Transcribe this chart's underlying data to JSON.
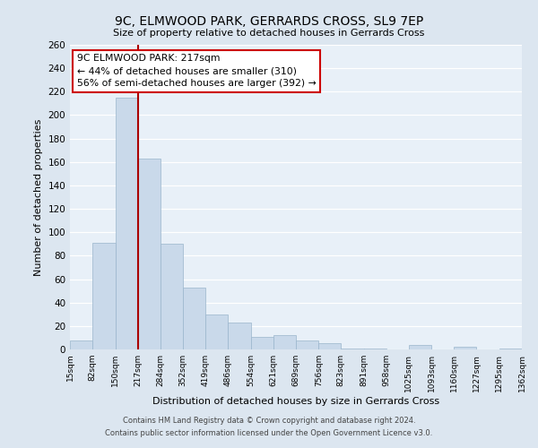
{
  "title": "9C, ELMWOOD PARK, GERRARDS CROSS, SL9 7EP",
  "subtitle": "Size of property relative to detached houses in Gerrards Cross",
  "xlabel": "Distribution of detached houses by size in Gerrards Cross",
  "ylabel": "Number of detached properties",
  "bin_edges": [
    15,
    82,
    150,
    217,
    284,
    352,
    419,
    486,
    554,
    621,
    689,
    756,
    823,
    891,
    958,
    1025,
    1093,
    1160,
    1227,
    1295,
    1362
  ],
  "bin_heights": [
    8,
    91,
    215,
    163,
    90,
    53,
    30,
    23,
    11,
    12,
    8,
    5,
    1,
    1,
    0,
    4,
    0,
    2,
    0,
    1
  ],
  "bar_color": "#c9d9ea",
  "bar_edgecolor": "#9ab5cc",
  "vline_x": 217,
  "vline_color": "#aa0000",
  "annotation_text": "9C ELMWOOD PARK: 217sqm\n← 44% of detached houses are smaller (310)\n56% of semi-detached houses are larger (392) →",
  "annotation_box_edgecolor": "#cc0000",
  "annotation_box_facecolor": "#ffffff",
  "ylim": [
    0,
    260
  ],
  "yticks": [
    0,
    20,
    40,
    60,
    80,
    100,
    120,
    140,
    160,
    180,
    200,
    220,
    240,
    260
  ],
  "tick_labels": [
    "15sqm",
    "82sqm",
    "150sqm",
    "217sqm",
    "284sqm",
    "352sqm",
    "419sqm",
    "486sqm",
    "554sqm",
    "621sqm",
    "689sqm",
    "756sqm",
    "823sqm",
    "891sqm",
    "958sqm",
    "1025sqm",
    "1093sqm",
    "1160sqm",
    "1227sqm",
    "1295sqm",
    "1362sqm"
  ],
  "footer_text": "Contains HM Land Registry data © Crown copyright and database right 2024.\nContains public sector information licensed under the Open Government Licence v3.0.",
  "bg_color": "#dce6f0",
  "plot_bg_color": "#e8f0f8"
}
